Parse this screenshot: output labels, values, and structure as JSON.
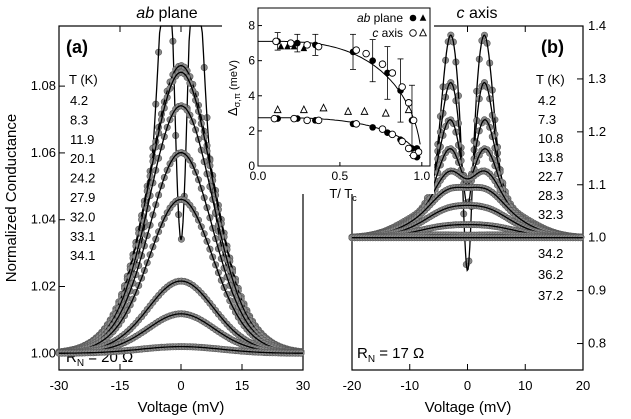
{
  "chart_data": [
    {
      "panel": "a",
      "type": "scatter",
      "panel_label": "(a)",
      "title": "ab plane",
      "title_italic": "ab",
      "title_rest": " plane",
      "xlabel": "Voltage (mV)",
      "ylabel": "Normalized Conductance",
      "xlim": [
        -30,
        30
      ],
      "ylim": [
        0.995,
        1.098
      ],
      "xticks": [
        -30,
        -15,
        0,
        15,
        30
      ],
      "yticks": [
        1.0,
        1.02,
        1.04,
        1.06,
        1.08
      ],
      "legend_title": "T (K)",
      "temperatures": [
        "4.2",
        "8.3",
        "11.9",
        "20.1",
        "24.2",
        "27.9",
        "32.0",
        "33.1",
        "34.1"
      ],
      "resistance_label": "R",
      "resistance_sub": "N",
      "resistance_value": " = 20 Ω",
      "curves": [
        {
          "T": 4.2,
          "peak_amp": 0.069,
          "peak_x": 3.0,
          "peak_w": 2.2,
          "dip_amp": 0.09,
          "dip_w": 1.6,
          "shoulder_amp": 0.022,
          "shoulder_w": 5.5,
          "bg_amp": 0.035,
          "bg_w": 10
        },
        {
          "T": 8.3,
          "peak_amp": 0.0,
          "peak_x": 3.0,
          "peak_w": 3.0,
          "dip_amp": 0.0,
          "dip_w": 2.0,
          "shoulder_amp": 0.03,
          "shoulder_w": 6.0,
          "bg_amp": 0.038,
          "bg_w": 10
        },
        {
          "T": 11.9,
          "peak_amp": 0.0,
          "peak_x": 3.0,
          "peak_w": 3.0,
          "dip_amp": 0.0,
          "dip_w": 2.0,
          "shoulder_amp": 0.03,
          "shoulder_w": 6.0,
          "bg_amp": 0.036,
          "bg_w": 10
        },
        {
          "T": 20.1,
          "peak_amp": 0.0,
          "peak_x": 3.0,
          "peak_w": 3.0,
          "dip_amp": 0.0,
          "dip_w": 2.0,
          "shoulder_amp": 0.025,
          "shoulder_w": 6.0,
          "bg_amp": 0.034,
          "bg_w": 10
        },
        {
          "T": 24.2,
          "peak_amp": 0.0,
          "peak_x": 3.0,
          "peak_w": 3.0,
          "dip_amp": 0.0,
          "dip_w": 2.0,
          "shoulder_amp": 0.02,
          "shoulder_w": 6.0,
          "bg_amp": 0.028,
          "bg_w": 10
        },
        {
          "T": 27.9,
          "peak_amp": 0.0,
          "peak_x": 3.0,
          "peak_w": 3.0,
          "dip_amp": 0.0,
          "dip_w": 2.0,
          "shoulder_amp": 0.015,
          "shoulder_w": 6.0,
          "bg_amp": 0.022,
          "bg_w": 10
        },
        {
          "T": 32.0,
          "peak_amp": 0.0,
          "peak_x": 3.0,
          "peak_w": 3.0,
          "dip_amp": 0.0,
          "dip_w": 2.0,
          "shoulder_amp": 0.006,
          "shoulder_w": 6.0,
          "bg_amp": 0.012,
          "bg_w": 10
        },
        {
          "T": 33.1,
          "peak_amp": 0.0,
          "peak_x": 3.0,
          "peak_w": 3.0,
          "dip_amp": 0.0,
          "dip_w": 2.0,
          "shoulder_amp": 0.003,
          "shoulder_w": 6.0,
          "bg_amp": 0.007,
          "bg_w": 10
        },
        {
          "T": 34.1,
          "peak_amp": 0.0,
          "peak_x": 3.0,
          "peak_w": 3.0,
          "dip_amp": 0.0,
          "dip_w": 2.0,
          "shoulder_amp": 0.0,
          "shoulder_w": 6.0,
          "bg_amp": 0.002,
          "bg_w": 10
        }
      ]
    },
    {
      "panel": "b",
      "type": "scatter",
      "panel_label": "(b)",
      "title": "c axis",
      "title_italic": "c",
      "title_rest": " axis",
      "xlabel": "Voltage (mV)",
      "ylabel": "",
      "xlim": [
        -20,
        20
      ],
      "ylim": [
        0.75,
        1.4
      ],
      "xticks": [
        -20,
        -10,
        0,
        10,
        20
      ],
      "yticks": [
        0.8,
        0.9,
        1.0,
        1.1,
        1.2,
        1.3,
        1.4
      ],
      "legend_title": "T (K)",
      "temperatures_upper": [
        "4.2",
        "7.3",
        "10.8",
        "13.8",
        "22.7",
        "28.3",
        "32.3"
      ],
      "temperatures_lower": [
        "34.2",
        "36.2",
        "37.2"
      ],
      "resistance_label": "R",
      "resistance_sub": "N",
      "resistance_value": " = 17 Ω",
      "curves": [
        {
          "T": 4.2,
          "peak_amp": 0.33,
          "peak_x": 2.9,
          "peak_w": 1.6,
          "dip": 0.24,
          "dip_w": 0.7,
          "shoulder": 0.05
        },
        {
          "T": 7.3,
          "peak_amp": 0.24,
          "peak_x": 2.9,
          "peak_w": 1.8,
          "dip": 0.12,
          "dip_w": 0.9,
          "shoulder": 0.05
        },
        {
          "T": 10.8,
          "peak_amp": 0.17,
          "peak_x": 3.0,
          "peak_w": 2.0,
          "dip": 0.06,
          "dip_w": 1.0,
          "shoulder": 0.05
        },
        {
          "T": 13.8,
          "peak_amp": 0.12,
          "peak_x": 3.0,
          "peak_w": 2.2,
          "dip": 0.03,
          "dip_w": 1.2,
          "shoulder": 0.045
        },
        {
          "T": 22.7,
          "peak_amp": 0.08,
          "peak_x": 3.0,
          "peak_w": 2.6,
          "dip": 0.01,
          "dip_w": 1.4,
          "shoulder": 0.04
        },
        {
          "T": 28.3,
          "peak_amp": 0.05,
          "peak_x": 3.0,
          "peak_w": 3.0,
          "dip": 0.0,
          "dip_w": 1.5,
          "shoulder": 0.035
        },
        {
          "T": 32.3,
          "peak_amp": 0.03,
          "peak_x": 3.0,
          "peak_w": 3.5,
          "dip": 0.0,
          "dip_w": 1.5,
          "shoulder": 0.02
        },
        {
          "T": 34.2,
          "peak_amp": 0.01,
          "peak_x": 3.0,
          "peak_w": 4.0,
          "dip": 0.0,
          "dip_w": 1.5,
          "shoulder": 0.01
        },
        {
          "T": 36.2,
          "peak_amp": 0.0,
          "peak_x": 3.0,
          "peak_w": 4.0,
          "dip": 0.0,
          "dip_w": 1.5,
          "shoulder": 0.005
        },
        {
          "T": 37.2,
          "peak_amp": 0.0,
          "peak_x": 3.0,
          "peak_w": 4.0,
          "dip": 0.0,
          "dip_w": 1.5,
          "shoulder": 0.0
        }
      ]
    },
    {
      "panel": "inset",
      "type": "scatter",
      "xlabel_main": "T/ T",
      "xlabel_sub": "c",
      "ylabel_main": "Δ",
      "ylabel_sub": "σ,π",
      "ylabel_unit": "(meV)",
      "xlim": [
        0,
        1.05
      ],
      "ylim": [
        0,
        9
      ],
      "xticks": [
        0.0,
        0.5,
        1.0
      ],
      "yticks": [
        0,
        2,
        4,
        6,
        8
      ],
      "legend": [
        {
          "italic": "ab",
          "rest": " plane",
          "symbols": [
            "filled-circle",
            "filled-triangle"
          ]
        },
        {
          "italic": "c",
          "rest": " axis",
          "symbols": [
            "open-circle",
            "open-triangle"
          ]
        }
      ],
      "series": [
        {
          "name": "ab plane σ",
          "marker": "filled-circle",
          "x": [
            0.12,
            0.24,
            0.35,
            0.58,
            0.7,
            0.79,
            0.87,
            0.94,
            0.97
          ],
          "y": [
            7.1,
            7.0,
            6.9,
            6.5,
            6.0,
            5.3,
            4.3,
            2.6,
            1.0
          ]
        },
        {
          "name": "ab plane π",
          "marker": "filled-circle",
          "x": [
            0.12,
            0.24,
            0.35,
            0.58,
            0.7,
            0.79,
            0.87,
            0.94,
            0.97
          ],
          "y": [
            2.7,
            2.7,
            2.6,
            2.4,
            2.2,
            1.9,
            1.5,
            1.0,
            0.5
          ]
        },
        {
          "name": "ab plane σ triangles",
          "marker": "filled-triangle",
          "x": [
            0.14,
            0.18,
            0.22,
            0.28
          ],
          "y": [
            6.8,
            6.8,
            6.8,
            6.7
          ]
        },
        {
          "name": "c axis σ",
          "marker": "open-circle",
          "x": [
            0.11,
            0.2,
            0.3,
            0.37,
            0.6,
            0.66,
            0.76,
            0.82,
            0.88,
            0.92,
            0.95,
            0.98
          ],
          "y": [
            7.1,
            7.0,
            6.9,
            6.8,
            6.6,
            6.4,
            5.8,
            5.3,
            4.5,
            3.6,
            2.6,
            0.8
          ]
        },
        {
          "name": "c axis π",
          "marker": "open-circle",
          "x": [
            0.1,
            0.22,
            0.3,
            0.37,
            0.6,
            0.76,
            0.82,
            0.88,
            0.92,
            0.95
          ],
          "y": [
            2.7,
            2.7,
            2.6,
            2.6,
            2.4,
            2.1,
            1.8,
            1.4,
            1.0,
            0.6
          ]
        },
        {
          "name": "c axis triangles",
          "marker": "open-triangle",
          "x": [
            0.12,
            0.28,
            0.4,
            0.55,
            0.65,
            0.78,
            0.92
          ],
          "y": [
            3.2,
            3.2,
            3.3,
            3.1,
            3.1,
            3.0,
            3.2
          ]
        }
      ],
      "errorbars": [
        {
          "x": 0.12,
          "y": 7.1,
          "err": 0.5
        },
        {
          "x": 0.24,
          "y": 7.0,
          "err": 0.5
        },
        {
          "x": 0.35,
          "y": 6.9,
          "err": 0.6
        },
        {
          "x": 0.58,
          "y": 6.5,
          "err": 1.0
        },
        {
          "x": 0.7,
          "y": 6.0,
          "err": 1.2
        },
        {
          "x": 0.79,
          "y": 5.3,
          "err": 1.5
        },
        {
          "x": 0.87,
          "y": 4.3,
          "err": 1.8
        },
        {
          "x": 0.94,
          "y": 2.6,
          "err": 2.0
        }
      ],
      "fits": [
        {
          "delta0": 7.1,
          "type": "bcs"
        },
        {
          "delta0": 2.75,
          "type": "bcs"
        }
      ]
    }
  ]
}
